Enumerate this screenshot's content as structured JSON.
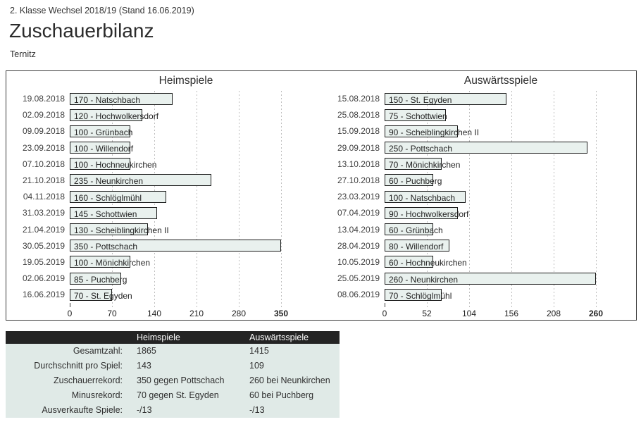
{
  "page": {
    "league_line": "2. Klasse Wechsel 2018/19 (Stand 16.06.2019)",
    "title": "Zuschauerbilanz",
    "team": "Ternitz"
  },
  "colors": {
    "bar_fill": "#e9f1ee",
    "bar_border": "#1a1a1a",
    "gridline": "#bdbdbd",
    "table_header_bg": "#242424",
    "table_body_bg": "#e0eae7"
  },
  "chart_data": [
    {
      "type": "bar",
      "orientation": "horizontal",
      "title": "Heimspiele",
      "categories": [
        "19.08.2018",
        "02.09.2018",
        "09.09.2018",
        "23.09.2018",
        "07.10.2018",
        "21.10.2018",
        "04.11.2018",
        "31.03.2019",
        "21.04.2019",
        "30.05.2019",
        "19.05.2019",
        "02.06.2019",
        "16.06.2019"
      ],
      "values": [
        170,
        120,
        100,
        100,
        100,
        235,
        160,
        145,
        130,
        350,
        100,
        85,
        70
      ],
      "bar_labels": [
        "170 - Natschbach",
        "120 - Hochwolkersdorf",
        "100 - Grünbach",
        "100 - Willendorf",
        "100 - Hochneukirchen",
        "235 - Neunkirchen",
        "160 - Schlöglmühl",
        "145 - Schottwien",
        "130 - Scheiblingkirchen II",
        "350 - Pottschach",
        "100 - Mönichkirchen",
        "85 - Puchberg",
        "70 - St. Egyden"
      ],
      "xlim": [
        0,
        350
      ],
      "xticks": [
        0,
        70,
        140,
        210,
        280,
        350
      ],
      "grid": "dashed-vertical"
    },
    {
      "type": "bar",
      "orientation": "horizontal",
      "title": "Auswärtsspiele",
      "categories": [
        "15.08.2018",
        "25.08.2018",
        "15.09.2018",
        "29.09.2018",
        "13.10.2018",
        "27.10.2018",
        "23.03.2019",
        "07.04.2019",
        "13.04.2019",
        "28.04.2019",
        "10.05.2019",
        "25.05.2019",
        "08.06.2019"
      ],
      "values": [
        150,
        75,
        90,
        250,
        70,
        60,
        100,
        90,
        60,
        80,
        60,
        260,
        70
      ],
      "bar_labels": [
        "150 - St. Egyden",
        "75 - Schottwien",
        "90 - Scheiblingkirchen II",
        "250 - Pottschach",
        "70 - Mönichkirchen",
        "60 - Puchberg",
        "100 - Natschbach",
        "90 - Hochwolkersdorf",
        "60 - Grünbach",
        "80 - Willendorf",
        "60 - Hochneukirchen",
        "260 - Neunkirchen",
        "70 - Schlöglmühl"
      ],
      "xlim": [
        0,
        260
      ],
      "xticks": [
        0,
        52,
        104,
        156,
        208,
        260
      ],
      "grid": "dashed-vertical"
    }
  ],
  "summary_table": {
    "columns": [
      "",
      "Heimspiele",
      "Auswärtsspiele"
    ],
    "rows": [
      {
        "label": "Gesamtzahl:",
        "home": "1865",
        "away": "1415"
      },
      {
        "label": "Durchschnitt pro Spiel:",
        "home": "143",
        "away": "109"
      },
      {
        "label": "Zuschauerrekord:",
        "home": "350 gegen Pottschach",
        "away": "260 bei Neunkirchen"
      },
      {
        "label": "Minusrekord:",
        "home": "70 gegen St. Egyden",
        "away": "60 bei Puchberg"
      },
      {
        "label": "Ausverkaufte Spiele:",
        "home": "-/13",
        "away": "-/13"
      }
    ]
  }
}
